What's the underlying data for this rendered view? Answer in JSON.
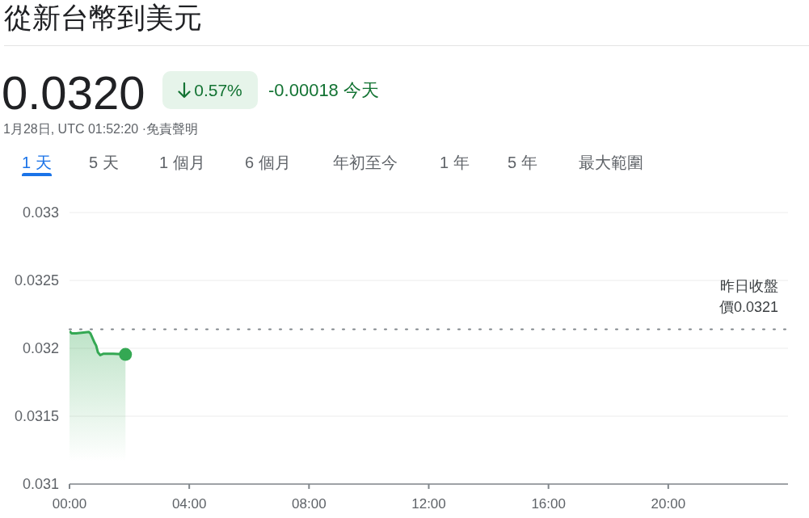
{
  "chart_data": {
    "type": "area",
    "title": "從新台幣到美元",
    "annotations": [
      "0.0320",
      "0.57%",
      "-0.00018 今天",
      "1月28日, UTC 01:52:20 ·免責聲明",
      "1 天",
      "5 天",
      "1 個月",
      "6 個月",
      "年初至今",
      "1 年",
      "5 年",
      "最大範圍"
    ],
    "x": [
      0,
      0.08,
      0.22,
      0.65,
      0.7,
      0.76,
      0.84,
      0.89,
      0.95,
      1.03,
      1.14,
      1.46,
      1.87
    ],
    "series": [
      {
        "color": "#34a853",
        "values": [
          0.032125,
          0.03211,
          0.03211,
          0.03212,
          0.03211,
          0.03208,
          0.03204,
          0.03202,
          0.03197,
          0.03195,
          0.03196,
          0.03196,
          0.031955
        ]
      },
      {
        "type": "scatter",
        "x": [
          1.87
        ],
        "values": [
          0.031955
        ],
        "color": "#34a853",
        "marker": "circle"
      }
    ],
    "xlim": [
      0,
      24
    ],
    "xticks": [
      {
        "value": 0,
        "label": "00:00"
      },
      {
        "value": 4,
        "label": "04:00"
      },
      {
        "value": 8,
        "label": "08:00"
      },
      {
        "value": 12,
        "label": "12:00"
      },
      {
        "value": 16,
        "label": "16:00"
      },
      {
        "value": 20,
        "label": "20:00"
      }
    ],
    "ylim": [
      0.031,
      0.033
    ],
    "yticks": [
      0.031,
      0.0315,
      0.032,
      0.0325,
      0.033
    ],
    "grid": "y",
    "ref_lines": [
      {
        "axis": "y",
        "value": 0.03214,
        "label": "昨日收盤價0.0321",
        "color": "#80868b",
        "line_style": "dotted"
      }
    ]
  }
}
